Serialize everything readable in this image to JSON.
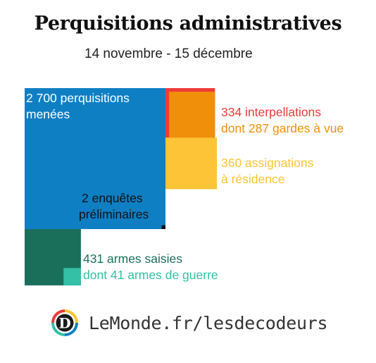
{
  "title": "Perquisitions administratives",
  "subtitle": "14 novembre - 15 décembre",
  "colors": {
    "perquisitions": "#0f7fc4",
    "interpellations": "#ef3b38",
    "gardes": "#f0900a",
    "assignations": "#fcc436",
    "enquetes": "#111111",
    "armes": "#1a6f5b",
    "armes_guerre": "#34c0a6"
  },
  "labels": {
    "perquisitions_line1": "2 700 perquisitions",
    "perquisitions_line2": "menées",
    "interpellations": "334 interpellations",
    "gardes": "dont 287 gardes à vue",
    "assignations_line1": "360 assignations",
    "assignations_line2": "à résidence",
    "enquetes_line1": "2 enquêtes",
    "enquetes_line2": "préliminaires",
    "armes": "431 armes saisies",
    "armes_guerre": "dont 41 armes de guerre"
  },
  "chart_data": {
    "type": "area-squares",
    "items": [
      {
        "key": "perquisitions",
        "value": 2700
      },
      {
        "key": "interpellations",
        "value": 334
      },
      {
        "key": "gardes",
        "value": 287
      },
      {
        "key": "assignations",
        "value": 360
      },
      {
        "key": "enquetes",
        "value": 2
      },
      {
        "key": "armes",
        "value": 431
      },
      {
        "key": "armes_guerre",
        "value": 41
      }
    ]
  },
  "footer": {
    "logo_letter": "D",
    "logo_icon": "decodeurs-logo-icon",
    "text": "LeMonde.fr/lesdecodeurs"
  }
}
